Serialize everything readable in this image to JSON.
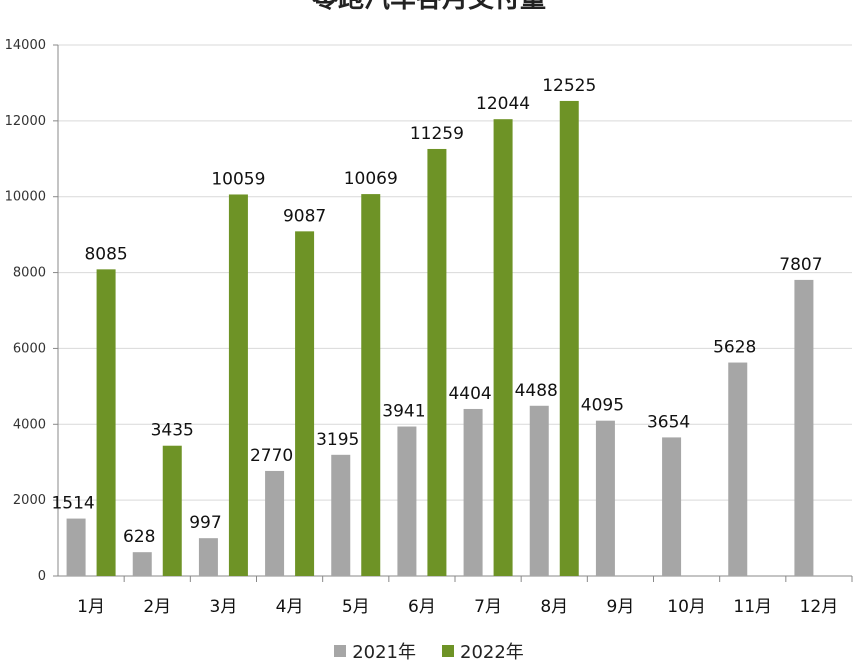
{
  "chart_data": {
    "type": "bar",
    "title": "零跑汽车各月交付量",
    "categories": [
      "1月",
      "2月",
      "3月",
      "4月",
      "5月",
      "6月",
      "7月",
      "8月",
      "9月",
      "10月",
      "11月",
      "12月"
    ],
    "series": [
      {
        "name": "2021年",
        "color": "#a6a6a6",
        "values": [
          1514,
          628,
          997,
          2770,
          3195,
          3941,
          4404,
          4488,
          4095,
          3654,
          5628,
          7807
        ]
      },
      {
        "name": "2022年",
        "color": "#6e9326",
        "values": [
          8085,
          3435,
          10059,
          9087,
          10069,
          11259,
          12044,
          12525,
          null,
          null,
          null,
          null
        ]
      }
    ],
    "ylim": [
      0,
      14000
    ],
    "yticks": [
      0,
      2000,
      4000,
      6000,
      8000,
      10000,
      12000,
      14000
    ],
    "xlabel": "",
    "ylabel": "",
    "grid": true,
    "legend": "bottom"
  }
}
